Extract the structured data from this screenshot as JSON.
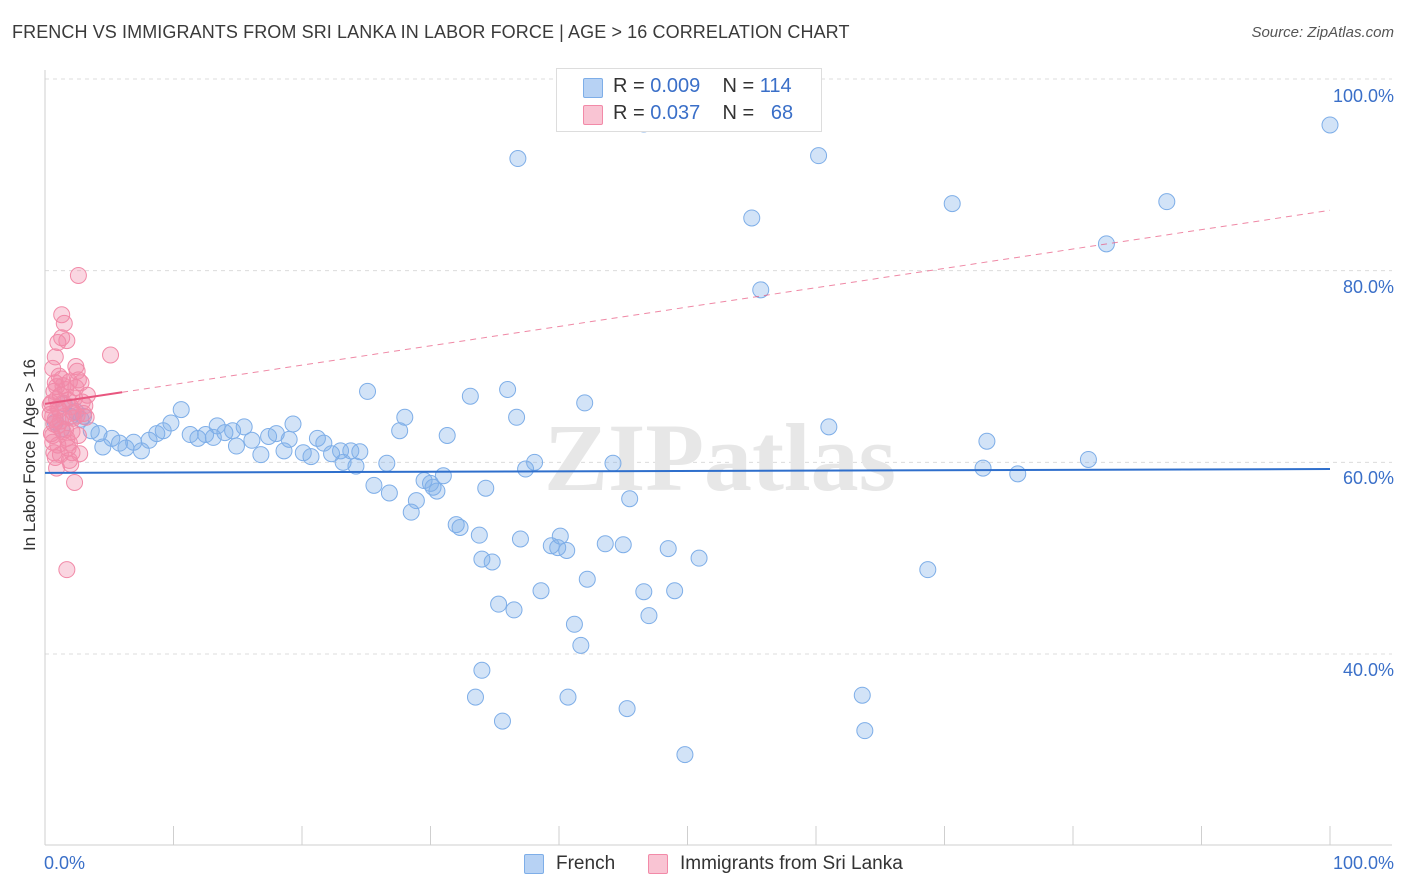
{
  "title": "FRENCH VS IMMIGRANTS FROM SRI LANKA IN LABOR FORCE | AGE > 16 CORRELATION CHART",
  "source": "Source: ZipAtlas.com",
  "watermark": "ZIPatlas",
  "colors": {
    "french": "#7eaee8",
    "french_line": "#2f6fcc",
    "srilanka": "#f28aa8",
    "srilanka_line": "#e8567f",
    "axis_text": "#3a6fc8"
  },
  "legend": {
    "rows": [
      {
        "r_label": "R = ",
        "r_value": "0.009",
        "n_label": "N = ",
        "n_value": "114"
      },
      {
        "r_label": "R = ",
        "r_value": "0.037",
        "n_label": "N = ",
        "n_value": "68"
      }
    ]
  },
  "bottom_legend": {
    "french": "French",
    "srilanka": "Immigrants from Sri Lanka"
  },
  "chart_data": {
    "type": "scatter",
    "title": "FRENCH VS IMMIGRANTS FROM SRI LANKA IN LABOR FORCE | AGE > 16 CORRELATION CHART",
    "xlabel": "",
    "ylabel": "In Labor Force | Age > 16",
    "xlim": [
      0,
      100
    ],
    "ylim": [
      20,
      104
    ],
    "x_tick_labels": [
      "0.0%",
      "100.0%"
    ],
    "y_tick_labels": [
      "40.0%",
      "60.0%",
      "80.0%",
      "100.0%"
    ],
    "y_ticks": [
      40,
      60,
      80,
      100
    ],
    "grid": true,
    "legend_position": "top-center",
    "series": [
      {
        "name": "French",
        "trend": {
          "x": [
            0,
            100
          ],
          "y": [
            58.9,
            59.3
          ]
        },
        "points": [
          [
            0.8,
            64.2
          ],
          [
            1.3,
            63.5
          ],
          [
            1.5,
            66.1
          ],
          [
            2.0,
            64.8
          ],
          [
            2.4,
            65.3
          ],
          [
            2.8,
            64.5
          ],
          [
            3.0,
            64.8
          ],
          [
            3.6,
            63.3
          ],
          [
            4.2,
            63.0
          ],
          [
            4.5,
            61.6
          ],
          [
            5.2,
            62.5
          ],
          [
            5.8,
            62.0
          ],
          [
            6.3,
            61.5
          ],
          [
            6.9,
            62.1
          ],
          [
            7.5,
            61.2
          ],
          [
            8.1,
            62.3
          ],
          [
            8.7,
            63.0
          ],
          [
            9.2,
            63.3
          ],
          [
            9.8,
            64.1
          ],
          [
            10.6,
            65.5
          ],
          [
            11.3,
            62.9
          ],
          [
            11.9,
            62.5
          ],
          [
            12.5,
            62.9
          ],
          [
            13.1,
            62.6
          ],
          [
            13.4,
            63.8
          ],
          [
            14.0,
            63.1
          ],
          [
            14.6,
            63.3
          ],
          [
            14.9,
            61.7
          ],
          [
            15.5,
            63.7
          ],
          [
            16.1,
            62.3
          ],
          [
            16.8,
            60.8
          ],
          [
            17.4,
            62.7
          ],
          [
            18.0,
            63.0
          ],
          [
            18.6,
            61.2
          ],
          [
            19.3,
            64.0
          ],
          [
            19.0,
            62.4
          ],
          [
            20.1,
            61.0
          ],
          [
            20.7,
            60.6
          ],
          [
            21.2,
            62.5
          ],
          [
            21.7,
            62.0
          ],
          [
            22.3,
            60.9
          ],
          [
            23.0,
            61.2
          ],
          [
            23.2,
            60.0
          ],
          [
            23.8,
            61.2
          ],
          [
            24.5,
            61.1
          ],
          [
            24.2,
            59.6
          ],
          [
            25.1,
            67.4
          ],
          [
            25.6,
            57.6
          ],
          [
            26.6,
            59.9
          ],
          [
            26.8,
            56.8
          ],
          [
            27.6,
            63.3
          ],
          [
            28.0,
            64.7
          ],
          [
            28.5,
            54.8
          ],
          [
            28.9,
            56.0
          ],
          [
            29.5,
            58.1
          ],
          [
            30.0,
            57.8
          ],
          [
            30.5,
            57.0
          ],
          [
            30.2,
            57.4
          ],
          [
            31.0,
            58.6
          ],
          [
            31.3,
            62.8
          ],
          [
            32.0,
            53.5
          ],
          [
            32.3,
            53.2
          ],
          [
            33.1,
            66.9
          ],
          [
            33.8,
            52.4
          ],
          [
            34.0,
            49.9
          ],
          [
            34.3,
            57.3
          ],
          [
            34.8,
            49.6
          ],
          [
            35.3,
            45.2
          ],
          [
            36.0,
            67.6
          ],
          [
            36.5,
            44.6
          ],
          [
            36.7,
            64.7
          ],
          [
            37.4,
            59.3
          ],
          [
            37.0,
            52.0
          ],
          [
            38.1,
            60.0
          ],
          [
            38.6,
            46.6
          ],
          [
            39.4,
            51.3
          ],
          [
            39.9,
            51.1
          ],
          [
            40.1,
            52.3
          ],
          [
            40.6,
            50.8
          ],
          [
            41.2,
            43.1
          ],
          [
            41.7,
            40.9
          ],
          [
            42.0,
            66.2
          ],
          [
            42.2,
            47.8
          ],
          [
            43.6,
            51.5
          ],
          [
            44.2,
            59.9
          ],
          [
            45.0,
            51.4
          ],
          [
            45.5,
            56.2
          ],
          [
            46.6,
            46.5
          ],
          [
            47.0,
            44.0
          ],
          [
            48.5,
            51.0
          ],
          [
            49.0,
            46.6
          ],
          [
            50.9,
            50.0
          ],
          [
            33.5,
            35.5
          ],
          [
            34.0,
            38.3
          ],
          [
            35.6,
            33.0
          ],
          [
            40.7,
            35.5
          ],
          [
            45.3,
            34.3
          ],
          [
            49.8,
            29.5
          ],
          [
            63.8,
            32.0
          ],
          [
            63.6,
            35.7
          ],
          [
            36.8,
            91.7
          ],
          [
            46.6,
            95.3
          ],
          [
            55.0,
            85.5
          ],
          [
            55.7,
            78.0
          ],
          [
            60.2,
            92.0
          ],
          [
            61.0,
            63.7
          ],
          [
            68.7,
            48.8
          ],
          [
            70.6,
            87.0
          ],
          [
            73.0,
            59.4
          ],
          [
            73.3,
            62.2
          ],
          [
            75.7,
            58.8
          ],
          [
            81.2,
            60.3
          ],
          [
            82.6,
            82.8
          ],
          [
            87.3,
            87.2
          ],
          [
            100,
            95.2
          ]
        ]
      },
      {
        "name": "Immigrants from Sri Lanka",
        "trend": {
          "x": [
            0,
            100
          ],
          "y": [
            66.1,
            86.3
          ]
        },
        "points": [
          [
            0.4,
            65.0
          ],
          [
            0.5,
            66.2
          ],
          [
            0.6,
            64.8
          ],
          [
            0.7,
            67.4
          ],
          [
            0.8,
            68.3
          ],
          [
            0.9,
            66.6
          ],
          [
            1.0,
            65.7
          ],
          [
            1.1,
            69.0
          ],
          [
            1.2,
            64.3
          ],
          [
            0.5,
            63.0
          ],
          [
            0.6,
            62.1
          ],
          [
            0.7,
            61.0
          ],
          [
            0.8,
            60.5
          ],
          [
            0.9,
            59.4
          ],
          [
            1.0,
            63.8
          ],
          [
            1.1,
            65.5
          ],
          [
            1.2,
            67.0
          ],
          [
            1.3,
            68.7
          ],
          [
            1.4,
            66.2
          ],
          [
            1.5,
            64.8
          ],
          [
            1.6,
            63.4
          ],
          [
            1.7,
            62.5
          ],
          [
            1.8,
            61.5
          ],
          [
            1.9,
            60.2
          ],
          [
            2.0,
            59.8
          ],
          [
            2.1,
            63.2
          ],
          [
            2.2,
            65.2
          ],
          [
            2.3,
            66.7
          ],
          [
            2.4,
            67.8
          ],
          [
            2.5,
            69.5
          ],
          [
            2.6,
            68.6
          ],
          [
            2.7,
            60.9
          ],
          [
            1.0,
            72.5
          ],
          [
            1.3,
            73.0
          ],
          [
            1.5,
            74.5
          ],
          [
            1.3,
            75.4
          ],
          [
            1.7,
            72.7
          ],
          [
            0.8,
            71.0
          ],
          [
            1.9,
            68.4
          ],
          [
            2.3,
            57.9
          ],
          [
            1.7,
            48.8
          ],
          [
            2.6,
            62.8
          ],
          [
            2.8,
            68.3
          ],
          [
            2.4,
            70.0
          ],
          [
            0.9,
            67.9
          ],
          [
            1.4,
            68.0
          ],
          [
            1.6,
            67.6
          ],
          [
            1.8,
            66.5
          ],
          [
            2.0,
            65.8
          ],
          [
            2.2,
            64.6
          ],
          [
            0.6,
            62.8
          ],
          [
            0.7,
            64.0
          ],
          [
            1.0,
            61.8
          ],
          [
            1.2,
            60.8
          ],
          [
            1.9,
            62.0
          ],
          [
            2.1,
            61.0
          ],
          [
            0.4,
            66.0
          ],
          [
            0.6,
            69.8
          ],
          [
            2.5,
            64.9
          ],
          [
            2.9,
            66.3
          ],
          [
            3.0,
            65.1
          ],
          [
            3.2,
            64.7
          ],
          [
            3.1,
            65.9
          ],
          [
            3.3,
            67.0
          ],
          [
            0.8,
            64.5
          ],
          [
            1.4,
            63.2
          ],
          [
            2.6,
            79.5
          ],
          [
            5.1,
            71.2
          ]
        ]
      }
    ]
  }
}
